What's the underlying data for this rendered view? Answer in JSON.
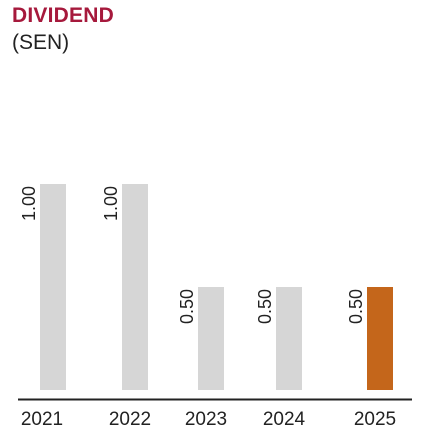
{
  "chart_data": {
    "type": "bar",
    "title": "DIVIDEND",
    "subtitle": "(SEN)",
    "categories": [
      "2021",
      "2022",
      "2023",
      "2024",
      "2025"
    ],
    "values": [
      1.0,
      1.0,
      0.5,
      0.5,
      0.5
    ],
    "data_labels": [
      "1.00",
      "1.00",
      "0.50",
      "0.50",
      "0.50"
    ],
    "ylim": [
      0,
      1.0
    ],
    "grid": false,
    "legend": "none",
    "colors": {
      "default_bar": "#d6d6d6",
      "highlight_bar": "#c4661b",
      "title": "#a6193c",
      "axis": "#222222"
    },
    "highlight_index": 4
  }
}
